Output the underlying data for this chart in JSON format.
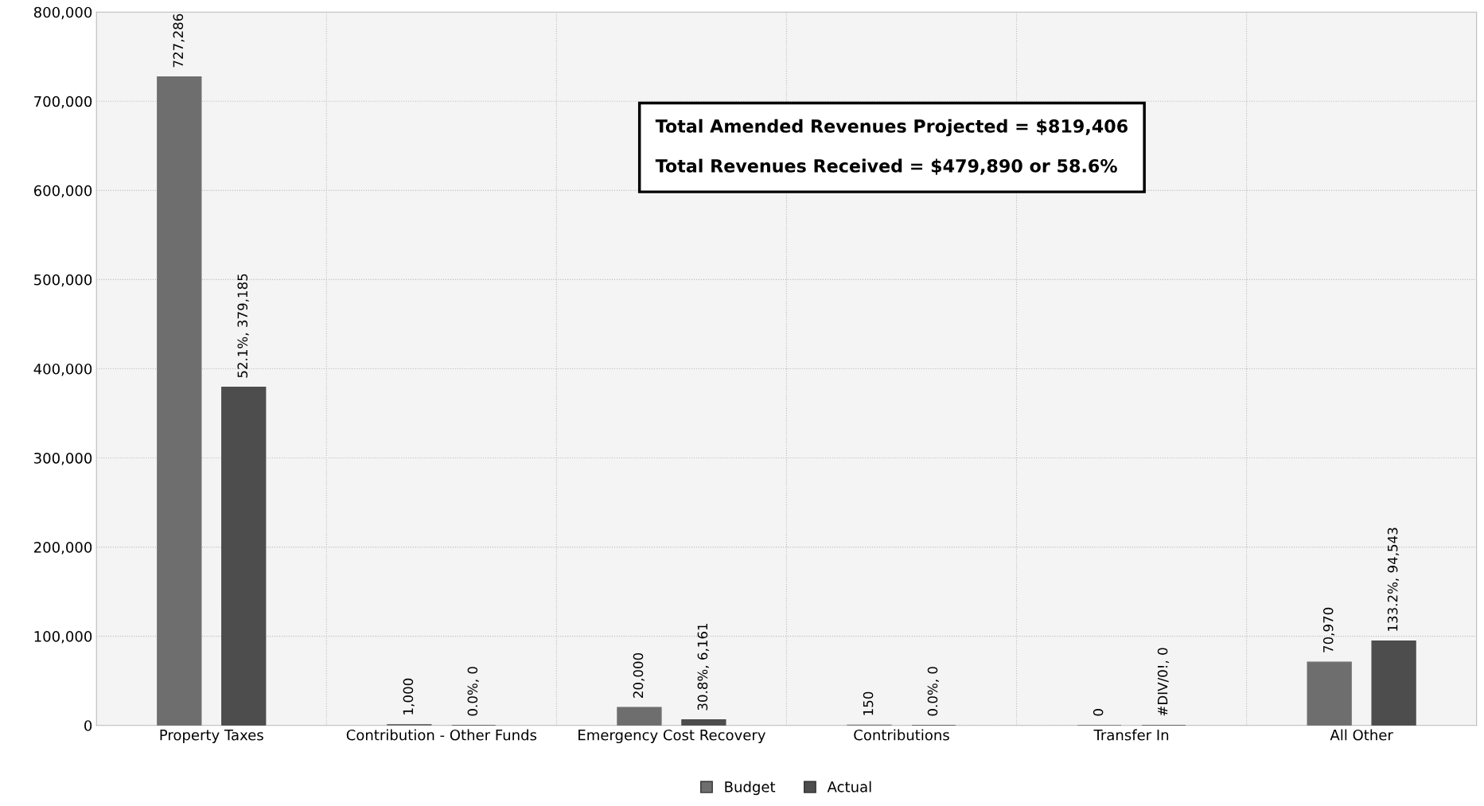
{
  "chart_data": {
    "type": "bar",
    "categories": [
      "Property Taxes",
      "Contribution - Other Funds",
      "Emergency Cost Recovery",
      "Contributions",
      "Transfer In",
      "All Other"
    ],
    "series": [
      {
        "name": "Budget",
        "color": "#6e6e6e",
        "values": [
          727286,
          1000,
          20000,
          150,
          0,
          70970
        ],
        "value_labels": [
          "727,286",
          "1,000",
          "20,000",
          "150",
          "0",
          "70,970"
        ]
      },
      {
        "name": "Actual",
        "color": "#4d4d4d",
        "values": [
          379185,
          0,
          6161,
          0,
          0,
          94543
        ],
        "value_labels": [
          "52.1%, 379,185",
          "0.0%, 0",
          "30.8%, 6,161",
          "0.0%, 0",
          "#DIV/0!, 0",
          "133.2%, 94,543"
        ]
      }
    ],
    "ylim": [
      0,
      800000
    ],
    "yticks": [
      {
        "value": 0,
        "label": "0"
      },
      {
        "value": 100000,
        "label": "100,000"
      },
      {
        "value": 200000,
        "label": "200,000"
      },
      {
        "value": 300000,
        "label": "300,000"
      },
      {
        "value": 400000,
        "label": "400,000"
      },
      {
        "value": 500000,
        "label": "500,000"
      },
      {
        "value": 600000,
        "label": "600,000"
      },
      {
        "value": 700000,
        "label": "700,000"
      },
      {
        "value": 800000,
        "label": "800,000"
      }
    ],
    "grid": true,
    "legend": "bottom",
    "annotations": [
      "Total Amended Revenues Projected = $819,406",
      "Total Revenues Received = $479,890 or 58.6%"
    ]
  }
}
